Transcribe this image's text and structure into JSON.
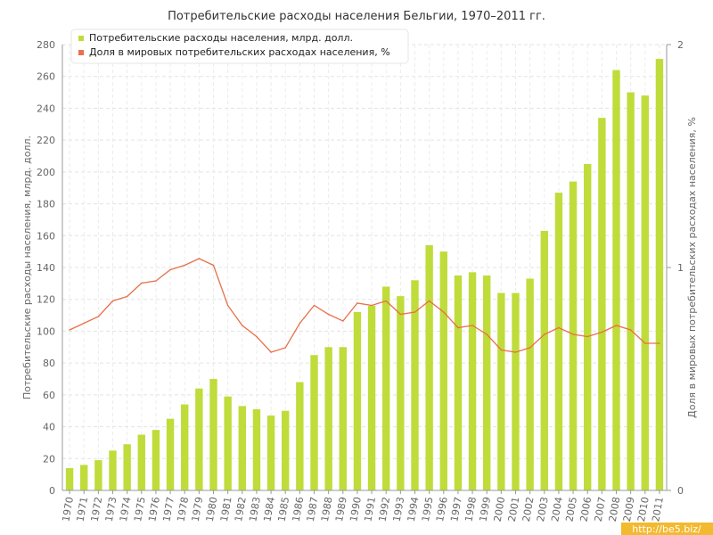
{
  "chart_data": {
    "type": "bar+line",
    "title": "Потребительские расходы населения Бельгии, 1970–2011 гг.",
    "ylabel": "Потребительские расходы населения, млрд. долл.",
    "y2label": "Доля в мировых потребительских расходах населения, %",
    "ylim": [
      0,
      280
    ],
    "y2lim": [
      0,
      2
    ],
    "yticks": [
      0,
      20,
      40,
      60,
      80,
      100,
      120,
      140,
      160,
      180,
      200,
      220,
      240,
      260,
      280
    ],
    "y2ticks": [
      0,
      1,
      2
    ],
    "grid": true,
    "legend_position": "top-left",
    "categories": [
      "1970",
      "1971",
      "1972",
      "1973",
      "1974",
      "1975",
      "1976",
      "1977",
      "1978",
      "1979",
      "1980",
      "1981",
      "1982",
      "1983",
      "1984",
      "1985",
      "1986",
      "1987",
      "1988",
      "1989",
      "1990",
      "1991",
      "1992",
      "1993",
      "1994",
      "1995",
      "1996",
      "1997",
      "1998",
      "1999",
      "2000",
      "2001",
      "2002",
      "2003",
      "2004",
      "2005",
      "2006",
      "2007",
      "2008",
      "2009",
      "2010",
      "2011"
    ],
    "series": [
      {
        "name": "Потребительские расходы населения, млрд. долл.",
        "type": "bar",
        "axis": "left",
        "color": "#bfdc3b",
        "values": [
          14,
          16,
          19,
          25,
          29,
          35,
          38,
          45,
          54,
          64,
          70,
          59,
          53,
          51,
          47,
          50,
          68,
          85,
          90,
          90,
          112,
          116,
          128,
          122,
          132,
          154,
          150,
          135,
          137,
          135,
          124,
          124,
          133,
          163,
          187,
          194,
          205,
          234,
          264,
          250,
          248,
          271
        ]
      },
      {
        "name": "Доля в мировых потребительских расходах населения, %",
        "type": "line",
        "axis": "right",
        "color": "#e8704a",
        "values": [
          0.72,
          0.75,
          0.78,
          0.85,
          0.87,
          0.93,
          0.94,
          0.99,
          1.01,
          1.04,
          1.01,
          0.83,
          0.74,
          0.69,
          0.62,
          0.64,
          0.75,
          0.83,
          0.79,
          0.76,
          0.84,
          0.83,
          0.85,
          0.79,
          0.8,
          0.85,
          0.8,
          0.73,
          0.74,
          0.7,
          0.63,
          0.62,
          0.64,
          0.7,
          0.73,
          0.7,
          0.69,
          0.71,
          0.74,
          0.72,
          0.66,
          0.66
        ]
      }
    ]
  },
  "watermark": "http://be5.biz/"
}
